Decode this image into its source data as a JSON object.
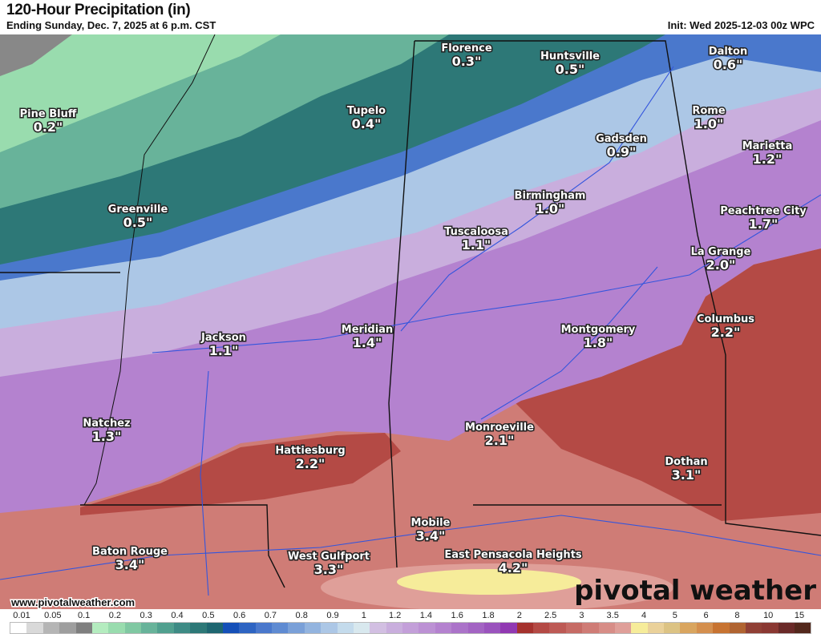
{
  "header": {
    "title": "120-Hour Precipitation (in)",
    "subtitle": "Ending Sunday, Dec. 7, 2025 at 6 p.m. CST",
    "init": "Init: Wed 2025-12-03 00z WPC"
  },
  "map": {
    "website": "www.pivotalweather.com",
    "logo": "pivotal weather",
    "cities": [
      {
        "name": "Florence",
        "value": "0.3\""
      },
      {
        "name": "Huntsville",
        "value": "0.5\""
      },
      {
        "name": "Dalton",
        "value": "0.6\""
      },
      {
        "name": "Pine Bluff",
        "value": "0.2\""
      },
      {
        "name": "Tupelo",
        "value": "0.4\""
      },
      {
        "name": "Rome",
        "value": "1.0\""
      },
      {
        "name": "Gadsden",
        "value": "0.9\""
      },
      {
        "name": "Marietta",
        "value": "1.2\""
      },
      {
        "name": "Birmingham",
        "value": "1.0\""
      },
      {
        "name": "Greenville",
        "value": "0.5\""
      },
      {
        "name": "Peachtree City",
        "value": "1.7\""
      },
      {
        "name": "Tuscaloosa",
        "value": "1.1\""
      },
      {
        "name": "La Grange",
        "value": "2.0\""
      },
      {
        "name": "Columbus",
        "value": "2.2\""
      },
      {
        "name": "Jackson",
        "value": "1.1\""
      },
      {
        "name": "Meridian",
        "value": "1.4\""
      },
      {
        "name": "Montgomery",
        "value": "1.8\""
      },
      {
        "name": "Natchez",
        "value": "1.3\""
      },
      {
        "name": "Monroeville",
        "value": "2.1\""
      },
      {
        "name": "Hattiesburg",
        "value": "2.2\""
      },
      {
        "name": "Dothan",
        "value": "3.1\""
      },
      {
        "name": "Mobile",
        "value": "3.4\""
      },
      {
        "name": "Baton Rouge",
        "value": "3.4\""
      },
      {
        "name": "West Gulfport",
        "value": "3.3\""
      },
      {
        "name": "East Pensacola Heights",
        "value": "4.2\""
      }
    ]
  },
  "legend": {
    "ticks": [
      "0.01",
      "0.05",
      "0.1",
      "0.2",
      "0.3",
      "0.4",
      "0.5",
      "0.6",
      "0.7",
      "0.8",
      "0.9",
      "1",
      "1.2",
      "1.4",
      "1.6",
      "1.8",
      "2",
      "2.5",
      "3",
      "3.5",
      "4",
      "5",
      "6",
      "8",
      "10",
      "15"
    ],
    "colors": [
      "#ffffff",
      "#d9d9d9",
      "#b5b5b5",
      "#9e9e9e",
      "#7f7f7f",
      "#b4ecbf",
      "#99dcae",
      "#80c8a2",
      "#68b39a",
      "#51a08f",
      "#3e8b85",
      "#2d7877",
      "#1e6670",
      "#1550b8",
      "#2e64c2",
      "#4a78cc",
      "#5f8bd2",
      "#7aa0d8",
      "#93b4df",
      "#acc7e6",
      "#c4dbec",
      "#d8e8ee",
      "#d2bfe2",
      "#c9aedd",
      "#c39fd9",
      "#bc91d4",
      "#b482cf",
      "#ab73c9",
      "#a364c3",
      "#9a53bd",
      "#9139b2",
      "#a5322e",
      "#b44a45",
      "#bd5a55",
      "#c66b65",
      "#cf7c76",
      "#d78d87",
      "#df9f99",
      "#f6ec9a",
      "#ead19a",
      "#dcc384",
      "#d9a55f",
      "#d48f4e",
      "#c77331",
      "#b06431",
      "#904035",
      "#8a3832",
      "#6a2a28",
      "#53281c"
    ]
  }
}
